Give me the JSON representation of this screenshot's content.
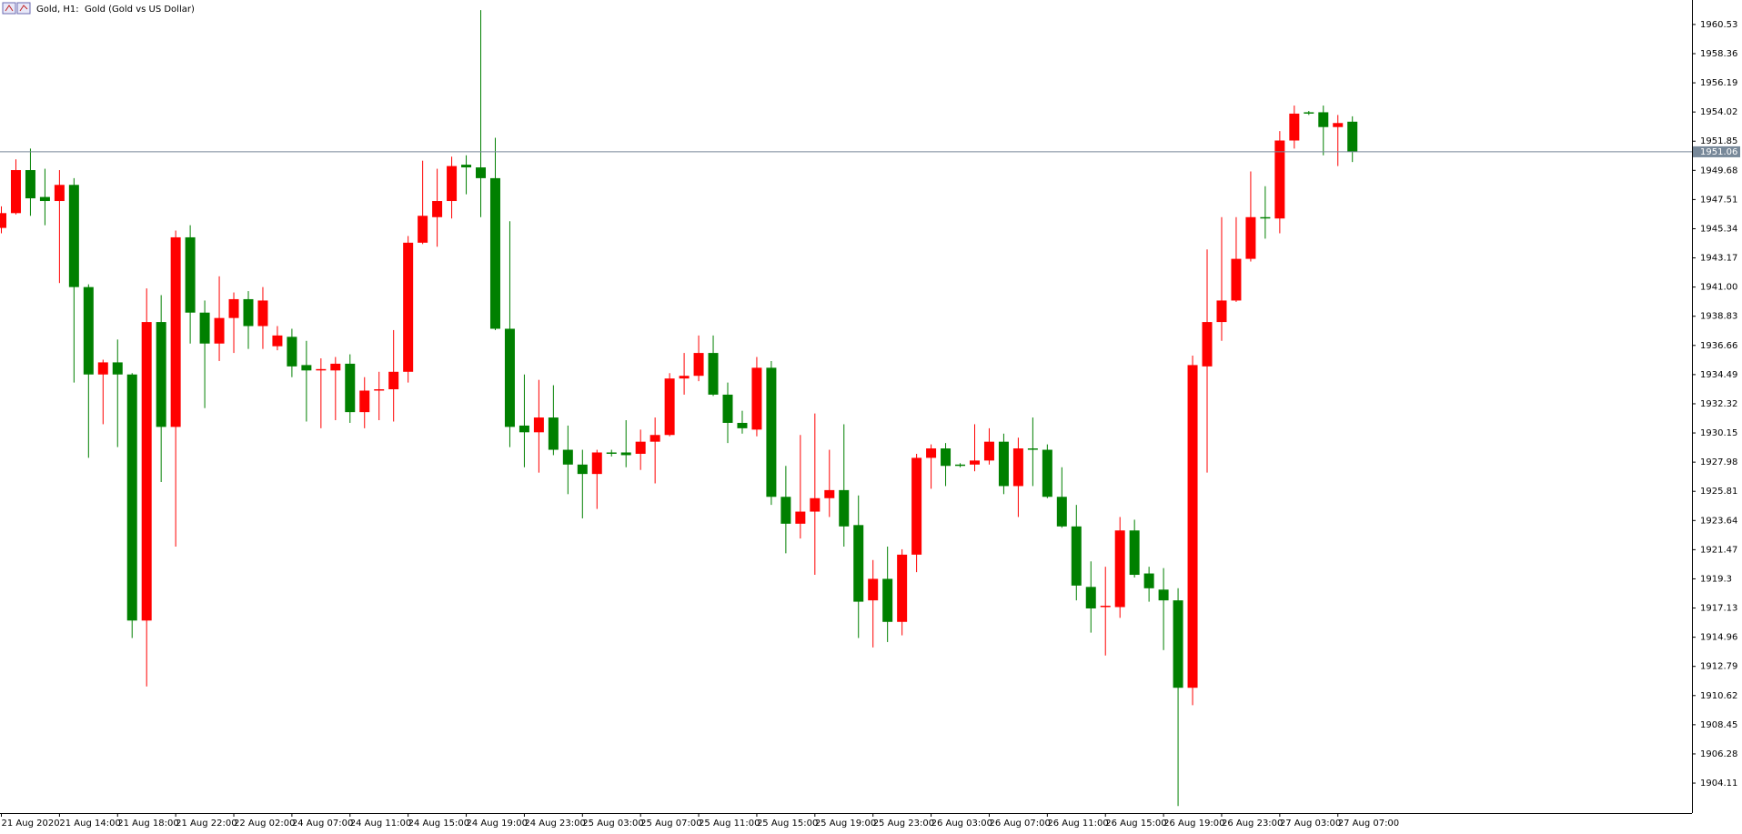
{
  "chart_data": {
    "type": "candlestick",
    "title": "Gold, H1:  Gold (Gold vs US Dollar)",
    "categories": [
      "21 Aug 2020",
      null,
      null,
      null,
      "21 Aug 14:00",
      null,
      null,
      null,
      "21 Aug 18:00",
      null,
      null,
      null,
      "21 Aug 22:00",
      null,
      null,
      null,
      "22 Aug 02:00",
      null,
      null,
      null,
      "24 Aug 07:00",
      null,
      null,
      null,
      "24 Aug 11:00",
      null,
      null,
      null,
      "24 Aug 15:00",
      null,
      null,
      null,
      "24 Aug 19:00",
      null,
      null,
      null,
      "24 Aug 23:00",
      null,
      null,
      null,
      "25 Aug 03:00",
      null,
      null,
      null,
      "25 Aug 07:00",
      null,
      null,
      null,
      "25 Aug 11:00",
      null,
      null,
      null,
      "25 Aug 15:00",
      null,
      null,
      null,
      "25 Aug 19:00",
      null,
      null,
      null,
      "25 Aug 23:00",
      null,
      null,
      null,
      "26 Aug 03:00",
      null,
      null,
      null,
      "26 Aug 07:00",
      null,
      null,
      null,
      "26 Aug 11:00",
      null,
      null,
      null,
      "26 Aug 15:00",
      null,
      null,
      null,
      "26 Aug 19:00",
      null,
      null,
      null,
      "26 Aug 23:00",
      null,
      null,
      null,
      "27 Aug 03:00",
      null,
      null,
      null,
      "27 Aug 07:00",
      null
    ],
    "open": [
      1945.4,
      1946.5,
      1949.7,
      1947.7,
      1947.4,
      1948.6,
      1941.0,
      1934.5,
      1935.4,
      1934.5,
      1916.2,
      1938.4,
      1930.6,
      1944.7,
      1939.1,
      1936.8,
      1938.7,
      1940.1,
      1938.1,
      1936.6,
      1937.3,
      1935.2,
      1934.8,
      1934.8,
      1935.3,
      1931.7,
      1933.3,
      1933.4,
      1934.7,
      1944.3,
      1946.2,
      1947.4,
      1950.1,
      1949.9,
      1949.1,
      1937.9,
      1930.7,
      1930.2,
      1931.3,
      1928.9,
      1927.8,
      1927.1,
      1928.7,
      1928.7,
      1928.6,
      1929.5,
      1930.0,
      1934.2,
      1934.4,
      1936.1,
      1933.0,
      1930.9,
      1930.4,
      1935.0,
      1925.4,
      1923.4,
      1924.3,
      1925.3,
      1925.9,
      1923.3,
      1917.7,
      1919.3,
      1916.1,
      1921.1,
      1928.3,
      1929.0,
      1927.8,
      1927.8,
      1928.1,
      1929.5,
      1926.2,
      1929.0,
      1928.9,
      1925.4,
      1923.2,
      1918.7,
      1917.2,
      1917.2,
      1922.9,
      1919.7,
      1918.5,
      1917.7,
      1911.2,
      1935.1,
      1938.4,
      1940.0,
      1943.1,
      1946.2,
      1946.1,
      1951.9,
      1954.0,
      1954.0,
      1952.9,
      1953.3
    ],
    "high": [
      1947.0,
      1950.5,
      1951.3,
      1949.8,
      1949.7,
      1949.1,
      1941.2,
      1935.6,
      1937.1,
      1934.6,
      1940.9,
      1940.4,
      1945.2,
      1945.6,
      1940.0,
      1941.8,
      1940.6,
      1940.7,
      1941.0,
      1938.1,
      1937.9,
      1937.0,
      1935.7,
      1935.8,
      1936.0,
      1934.3,
      1934.7,
      1937.8,
      1944.8,
      1950.4,
      1949.8,
      1950.7,
      1950.8,
      1961.6,
      1952.1,
      1945.9,
      1934.5,
      1934.1,
      1933.7,
      1930.7,
      1928.9,
      1928.9,
      1928.9,
      1931.1,
      1930.4,
      1931.3,
      1934.6,
      1936.1,
      1937.4,
      1937.4,
      1933.9,
      1931.8,
      1935.8,
      1935.5,
      1927.7,
      1930.0,
      1931.6,
      1928.9,
      1930.8,
      1925.5,
      1920.7,
      1921.7,
      1921.5,
      1928.6,
      1929.3,
      1929.4,
      1927.9,
      1930.8,
      1930.5,
      1930.1,
      1929.8,
      1931.3,
      1929.3,
      1927.6,
      1924.8,
      1920.6,
      1920.2,
      1923.9,
      1923.7,
      1920.2,
      1920.1,
      1918.6,
      1935.9,
      1943.8,
      1946.2,
      1946.2,
      1949.6,
      1948.5,
      1952.6,
      1954.5,
      1954.1,
      1954.5,
      1953.8,
      1953.7
    ],
    "low": [
      1945.0,
      1946.4,
      1946.3,
      1945.6,
      1941.3,
      1933.9,
      1928.3,
      1930.8,
      1929.1,
      1914.9,
      1911.3,
      1926.5,
      1921.7,
      1936.8,
      1932.0,
      1935.5,
      1936.1,
      1936.4,
      1936.4,
      1936.3,
      1934.3,
      1931.0,
      1930.5,
      1931.1,
      1930.9,
      1930.5,
      1931.1,
      1931.0,
      1933.9,
      1944.2,
      1944.0,
      1946.1,
      1947.9,
      1946.2,
      1937.8,
      1929.1,
      1927.6,
      1927.2,
      1928.5,
      1925.6,
      1923.8,
      1924.5,
      1928.4,
      1927.6,
      1927.4,
      1926.4,
      1929.9,
      1933.0,
      1934.0,
      1932.9,
      1929.4,
      1930.1,
      1929.9,
      1924.8,
      1921.2,
      1922.3,
      1919.6,
      1923.9,
      1921.7,
      1914.9,
      1914.2,
      1914.6,
      1915.1,
      1919.8,
      1926.0,
      1926.2,
      1927.6,
      1927.3,
      1927.8,
      1925.6,
      1923.9,
      1926.2,
      1925.3,
      1923.1,
      1917.7,
      1915.3,
      1913.6,
      1916.4,
      1919.4,
      1917.6,
      1914.0,
      1902.4,
      1909.9,
      1927.2,
      1937.0,
      1939.9,
      1942.9,
      1944.6,
      1945.0,
      1951.3,
      1953.8,
      1950.8,
      1950.0,
      1950.3
    ],
    "close": [
      1946.5,
      1949.7,
      1947.6,
      1947.4,
      1948.6,
      1941.0,
      1934.5,
      1935.4,
      1934.5,
      1916.2,
      1938.4,
      1930.6,
      1944.7,
      1939.1,
      1936.8,
      1938.7,
      1940.1,
      1938.1,
      1940.0,
      1937.4,
      1935.1,
      1934.8,
      1934.9,
      1935.3,
      1931.7,
      1933.3,
      1933.4,
      1934.7,
      1944.3,
      1946.3,
      1947.4,
      1950.0,
      1949.9,
      1949.1,
      1937.9,
      1930.6,
      1930.2,
      1931.3,
      1928.9,
      1927.8,
      1927.1,
      1928.7,
      1928.6,
      1928.5,
      1929.5,
      1930.0,
      1934.2,
      1934.4,
      1936.1,
      1933.0,
      1930.9,
      1930.5,
      1935.0,
      1925.4,
      1923.4,
      1924.3,
      1925.3,
      1925.9,
      1923.2,
      1917.6,
      1919.3,
      1916.1,
      1921.1,
      1928.3,
      1929.0,
      1927.7,
      1927.7,
      1928.1,
      1929.5,
      1926.2,
      1929.0,
      1928.9,
      1925.4,
      1923.2,
      1918.8,
      1917.1,
      1917.3,
      1922.9,
      1919.6,
      1918.6,
      1917.7,
      1911.2,
      1935.2,
      1938.4,
      1940.0,
      1943.1,
      1946.2,
      1946.1,
      1951.9,
      1953.9,
      1953.9,
      1952.9,
      1953.2,
      1951.06
    ],
    "up_color": "#ff0000",
    "down_color": "#008000",
    "current_price": 1951.06,
    "current_price_color": "#778899",
    "ylim": [
      1901.88,
      1962.35
    ],
    "yticks": [
      1960.53,
      1958.36,
      1956.19,
      1954.02,
      1951.85,
      1949.68,
      1947.51,
      1945.34,
      1943.17,
      {
        "value": 1941,
        "label": "1941.00"
      },
      1938.83,
      1936.66,
      1934.49,
      1932.32,
      1930.15,
      1927.98,
      1925.81,
      1923.64,
      1921.47,
      1919.3,
      1917.13,
      1914.96,
      1912.79,
      1910.62,
      1908.45,
      1906.28,
      1904.11
    ]
  }
}
